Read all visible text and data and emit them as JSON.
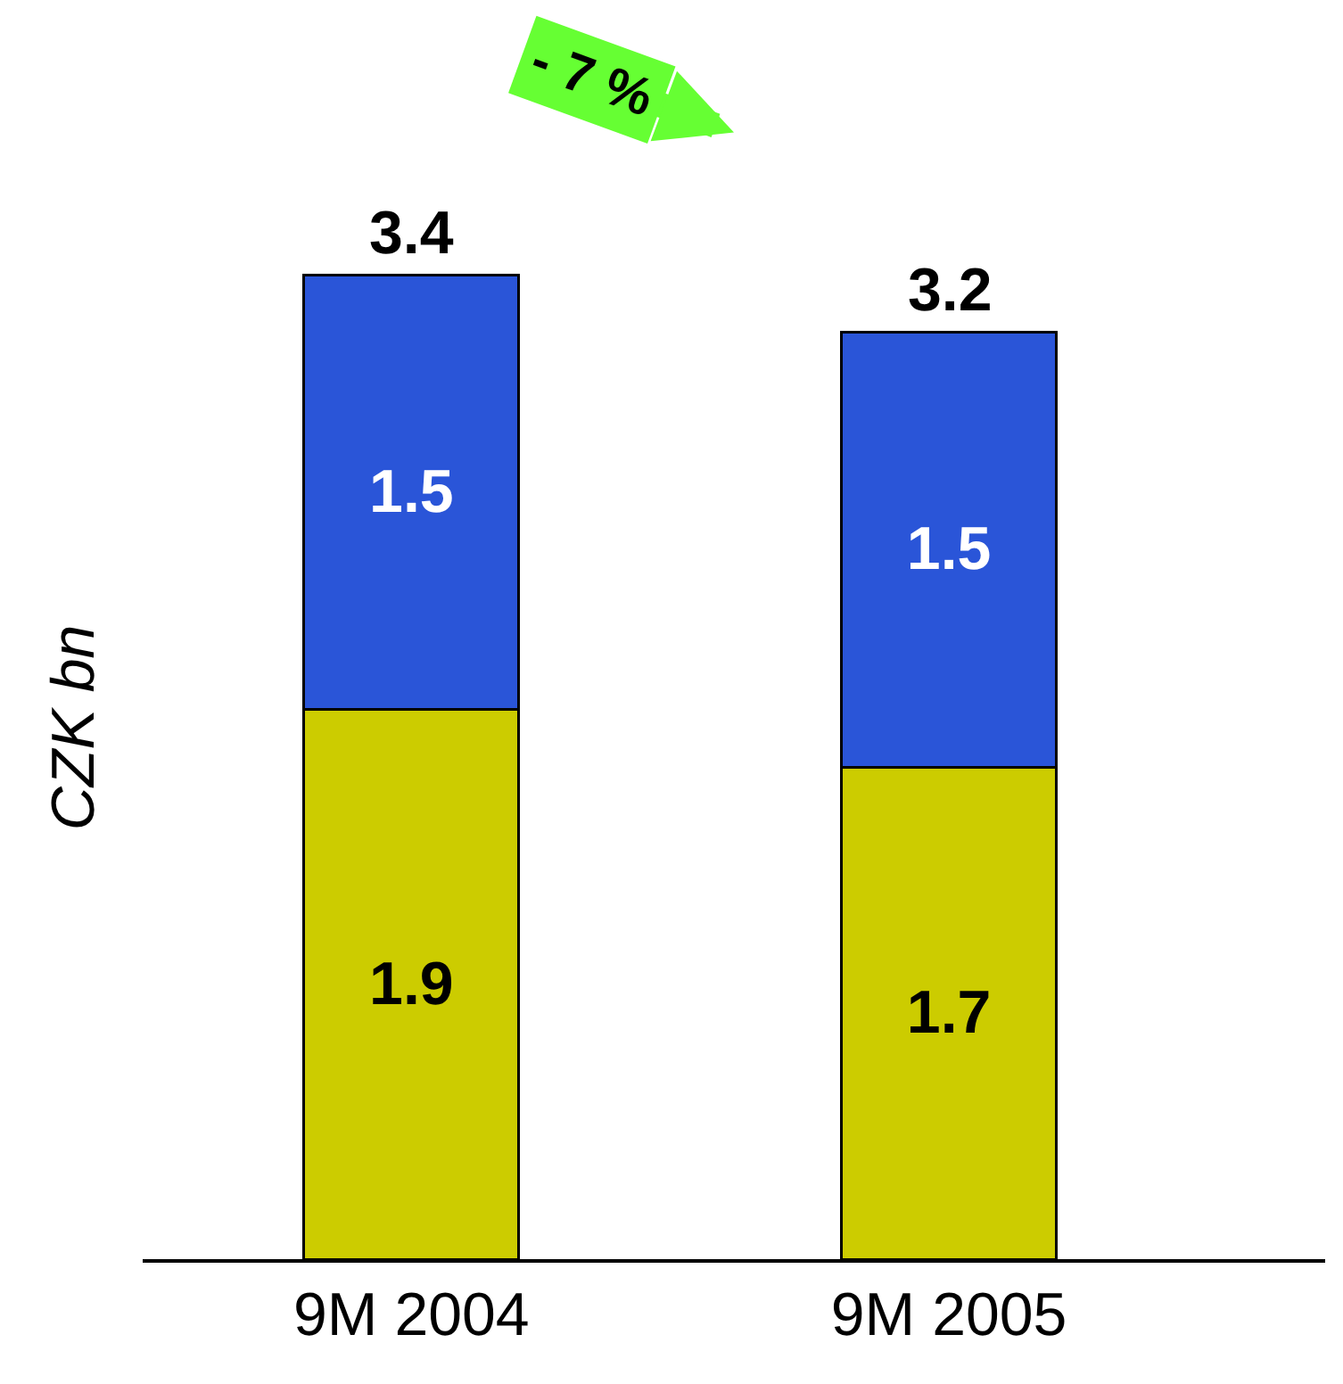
{
  "chart_data": {
    "type": "bar",
    "stacked": true,
    "ylabel": "CZK bn",
    "categories": [
      "9M 2004",
      "9M 2005"
    ],
    "series": [
      {
        "color": "#cccc00",
        "values": [
          1.9,
          1.7
        ]
      },
      {
        "color": "#2a55d8",
        "values": [
          1.5,
          1.5
        ]
      }
    ],
    "data_labels": true,
    "totals": [
      "3.4",
      "3.2"
    ],
    "annotations": [
      "- 7 %"
    ]
  }
}
